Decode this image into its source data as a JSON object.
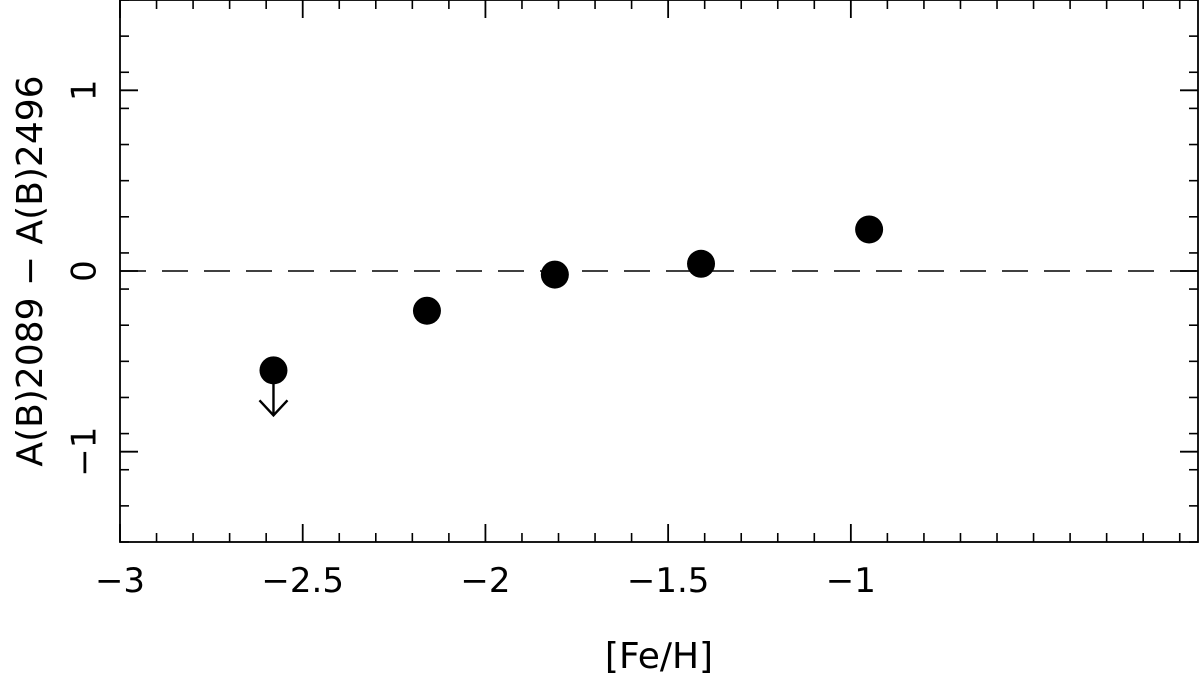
{
  "chart_data": {
    "type": "scatter",
    "xlabel": "[Fe/H]",
    "ylabel": "A(B)2089 − A(B)2496",
    "xlim": [
      -3.0,
      -0.05
    ],
    "ylim": [
      -1.5,
      1.5
    ],
    "x_ticks": [
      -3,
      -2.5,
      -2,
      -1.5,
      -1
    ],
    "x_tick_labels": [
      "−3",
      "−2.5",
      "−2",
      "−1.5",
      "−1"
    ],
    "y_ticks": [
      -1,
      0,
      1
    ],
    "y_tick_labels": [
      "−1",
      "0",
      "1"
    ],
    "x_minor_step": 0.1,
    "y_minor_step": 0.2,
    "reference_line": {
      "y": 0,
      "style": "dashed"
    },
    "grid": false,
    "legend": "none",
    "colors": {
      "marker": "#000000",
      "axes": "#000000"
    },
    "points": [
      {
        "x": -2.58,
        "y": -0.55,
        "upper_limit": true
      },
      {
        "x": -2.16,
        "y": -0.22,
        "upper_limit": false
      },
      {
        "x": -1.81,
        "y": -0.02,
        "upper_limit": false
      },
      {
        "x": -1.41,
        "y": 0.04,
        "upper_limit": false
      },
      {
        "x": -0.95,
        "y": 0.23,
        "upper_limit": false
      }
    ]
  }
}
